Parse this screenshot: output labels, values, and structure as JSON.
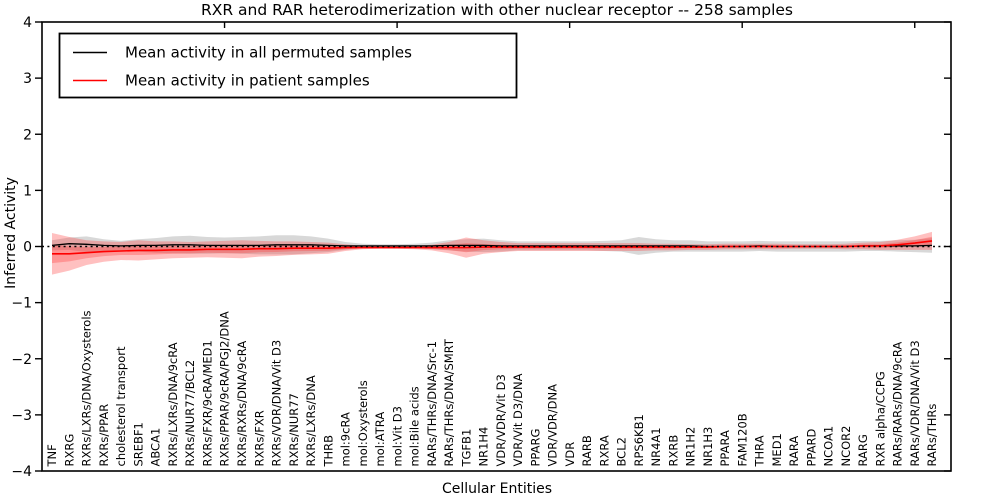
{
  "chart_data": {
    "type": "line",
    "title": "RXR and RAR heterodimerization with other nuclear receptor -- 258 samples",
    "xlabel": "Cellular Entities",
    "ylabel": "Inferred Activity",
    "ylim": [
      -4,
      4
    ],
    "yticks": [
      4,
      3,
      2,
      1,
      0,
      -1,
      -2,
      -3,
      -4
    ],
    "ytick_labels": [
      "4",
      "3",
      "2",
      "1",
      "0",
      "−1",
      "−2",
      "−3",
      "−4"
    ],
    "grid": false,
    "zero_line": {
      "style": "dotted",
      "color": "#000000",
      "y": 0
    },
    "legend_position": "upper left",
    "categories": [
      "TNF",
      "RXRG",
      "RXRs/LXRs/DNA/Oxysterols",
      "RXRs/PPAR",
      "cholesterol transport",
      "SREBF1",
      "ABCA1",
      "RXRs/LXRs/DNA/9cRA",
      "RXRs/NUR77/BCL2",
      "RXRs/FXR/9cRA/MED1",
      "RXRs/PPAR/9cRA/PGJ2/DNA",
      "RXRs/RXRs/DNA/9cRA",
      "RXRs/FXR",
      "RXRs/VDR/DNA/Vit D3",
      "RXRs/NUR77",
      "RXRs/LXRs/DNA",
      "THRB",
      "mol:9cRA",
      "mol:Oxysterols",
      "mol:ATRA",
      "mol:Vit D3",
      "mol:Bile acids",
      "RARs/THRs/DNA/Src-1",
      "RARs/THRs/DNA/SMRT",
      "TGFB1",
      "NR1H4",
      "VDR/VDR/Vit D3",
      "VDR/Vit D3/DNA",
      "PPARG",
      "VDR/VDR/DNA",
      "VDR",
      "RARB",
      "RXRA",
      "BCL2",
      "RPS6KB1",
      "NR4A1",
      "RXRB",
      "NR1H2",
      "NR1H3",
      "PPARA",
      "FAM120B",
      "THRA",
      "MED1",
      "RARA",
      "PPARD",
      "NCOA1",
      "NCOR2",
      "RARG",
      "RXR alpha/CCPG",
      "RARs/RARs/DNA/9cRA",
      "RARs/VDR/DNA/Vit D3",
      "RARs/THRs"
    ],
    "series": [
      {
        "name": "Mean activity in all permuted samples",
        "color": "#000000",
        "band_color": "rgba(125,125,125,0.30)",
        "values": [
          0.02,
          0.05,
          0.04,
          0.02,
          0.01,
          0.02,
          0.02,
          0.03,
          0.03,
          0.02,
          0.02,
          0.02,
          0.02,
          0.03,
          0.03,
          0.03,
          0.02,
          0.01,
          0.01,
          0.01,
          0.01,
          0.01,
          0.01,
          0.02,
          0.02,
          0.02,
          0.01,
          0.01,
          0.01,
          0.01,
          0.01,
          0.01,
          0.01,
          0.01,
          0.01,
          0.01,
          0.01,
          0.01,
          0,
          0,
          0,
          0.01,
          0,
          0,
          0,
          0,
          0,
          0.01,
          0.01,
          0.01,
          0.01,
          0.02
        ],
        "band_sigma": [
          0.09,
          0.11,
          0.14,
          0.11,
          0.09,
          0.11,
          0.13,
          0.15,
          0.16,
          0.15,
          0.14,
          0.15,
          0.16,
          0.17,
          0.17,
          0.15,
          0.12,
          0.07,
          0.04,
          0.03,
          0.03,
          0.04,
          0.06,
          0.09,
          0.11,
          0.12,
          0.1,
          0.08,
          0.08,
          0.08,
          0.08,
          0.08,
          0.09,
          0.1,
          0.16,
          0.12,
          0.1,
          0.1,
          0.09,
          0.09,
          0.09,
          0.09,
          0.09,
          0.09,
          0.09,
          0.09,
          0.09,
          0.09,
          0.09,
          0.1,
          0.11,
          0.13
        ]
      },
      {
        "name": "Mean activity in patient samples",
        "color": "#ff0000",
        "band_color": "rgba(255,45,45,0.30)",
        "values": [
          -0.13,
          -0.13,
          -0.11,
          -0.09,
          -0.08,
          -0.07,
          -0.07,
          -0.06,
          -0.06,
          -0.05,
          -0.05,
          -0.05,
          -0.04,
          -0.04,
          -0.03,
          -0.03,
          -0.03,
          -0.02,
          -0.02,
          -0.02,
          -0.02,
          -0.02,
          -0.02,
          -0.02,
          -0.02,
          -0.01,
          -0.01,
          -0.01,
          -0.01,
          -0.01,
          -0.01,
          -0.01,
          -0.01,
          -0.01,
          -0.01,
          -0.01,
          -0.01,
          -0.01,
          -0.01,
          0,
          0,
          0,
          0,
          0,
          0,
          0,
          0,
          0.01,
          0.01,
          0.03,
          0.06,
          0.1
        ],
        "band_sigma": [
          0.37,
          0.3,
          0.22,
          0.18,
          0.16,
          0.18,
          0.16,
          0.15,
          0.14,
          0.14,
          0.15,
          0.16,
          0.14,
          0.13,
          0.12,
          0.11,
          0.1,
          0.06,
          0.03,
          0.02,
          0.02,
          0.03,
          0.05,
          0.1,
          0.18,
          0.12,
          0.09,
          0.07,
          0.07,
          0.07,
          0.07,
          0.07,
          0.07,
          0.07,
          0.07,
          0.06,
          0.06,
          0.05,
          0.05,
          0.05,
          0.05,
          0.05,
          0.05,
          0.04,
          0.04,
          0.04,
          0.05,
          0.06,
          0.07,
          0.09,
          0.12,
          0.16
        ]
      }
    ]
  }
}
